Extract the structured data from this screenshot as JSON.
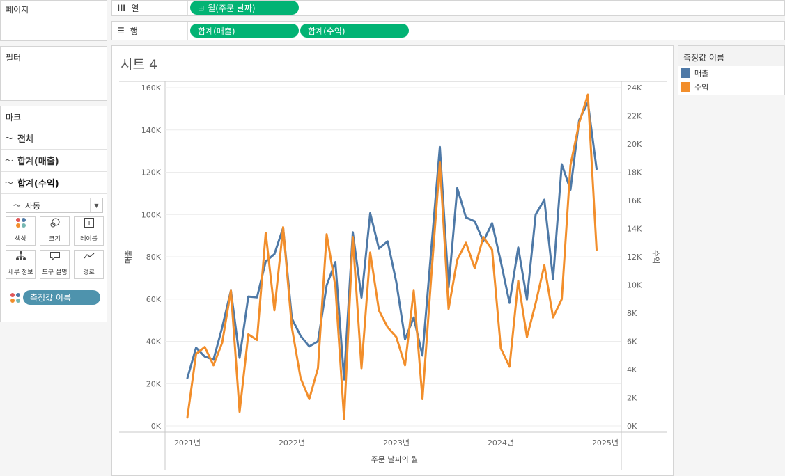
{
  "pages": {
    "title": "페이지"
  },
  "filters": {
    "title": "필터"
  },
  "marks": {
    "title": "마크",
    "rows": [
      {
        "label": "전체"
      },
      {
        "label": "합계(매출)"
      },
      {
        "label": "합계(수익)"
      }
    ],
    "mark_type": "자동",
    "buttons": [
      {
        "label": "색상",
        "icon": "color-icon"
      },
      {
        "label": "크기",
        "icon": "size-icon"
      },
      {
        "label": "레이블",
        "icon": "label-icon"
      },
      {
        "label": "세부 정보",
        "icon": "detail-icon"
      },
      {
        "label": "도구 설명",
        "icon": "tooltip-icon"
      },
      {
        "label": "경로",
        "icon": "path-icon"
      }
    ],
    "color_pill": "측정값 이름"
  },
  "columns_shelf": {
    "label": "열",
    "pill": "월(주문 날짜)"
  },
  "rows_shelf": {
    "label": "행",
    "pills": [
      "합계(매출)",
      "합계(수익)"
    ]
  },
  "sheet": {
    "title": "시트 4"
  },
  "legend": {
    "title": "측정값 이름",
    "items": [
      {
        "label": "매출",
        "color": "#4e79a7"
      },
      {
        "label": "수익",
        "color": "#f28e2b"
      }
    ]
  },
  "colors": {
    "pill_green": "#02b374",
    "pill_blue": "#4e93ad",
    "sales": "#4e79a7",
    "profit": "#f28e2b"
  },
  "chart_data": {
    "type": "line",
    "xlabel": "주문 날짜의 월",
    "ylabel_left": "매출",
    "ylabel_right": "수익",
    "x_ticks": [
      "2021년",
      "2022년",
      "2023년",
      "2024년",
      "2025년"
    ],
    "y_left_ticks": [
      "0K",
      "20K",
      "40K",
      "60K",
      "80K",
      "100K",
      "120K",
      "140K",
      "160K"
    ],
    "y_right_ticks": [
      "0K",
      "2K",
      "4K",
      "6K",
      "8K",
      "10K",
      "12K",
      "14K",
      "16K",
      "18K",
      "20K",
      "22K",
      "24K"
    ],
    "ylim_left": [
      0,
      160000
    ],
    "ylim_right": [
      0,
      24000
    ],
    "x_start": "2021-01",
    "x_end": "2025-01",
    "series": [
      {
        "name": "매출",
        "axis": "left",
        "values": [
          22600,
          37000,
          32800,
          31300,
          46600,
          64000,
          32200,
          61200,
          60800,
          77800,
          81300,
          93700,
          50800,
          42600,
          37600,
          40000,
          66500,
          77500,
          22000,
          91600,
          60700,
          100600,
          83900,
          87300,
          68000,
          41000,
          51300,
          33300,
          82800,
          132000,
          65500,
          112500,
          98600,
          96800,
          87300,
          95900,
          77700,
          58200,
          84400,
          59800,
          100000,
          107000,
          69500,
          123800,
          111700,
          144700,
          153000,
          121500
        ]
      },
      {
        "name": "수익",
        "axis": "right",
        "values": [
          600,
          5100,
          5600,
          4300,
          5900,
          9600,
          1000,
          6500,
          6100,
          13700,
          8200,
          14100,
          7000,
          3400,
          1900,
          4100,
          13600,
          9900,
          500,
          13400,
          4100,
          12300,
          8200,
          7000,
          6300,
          4300,
          9600,
          1900,
          10500,
          18700,
          8300,
          11800,
          13000,
          11200,
          13400,
          12500,
          5500,
          4200,
          10300,
          6300,
          8700,
          11400,
          7700,
          9000,
          18500,
          21500,
          23500,
          12500
        ]
      }
    ]
  }
}
